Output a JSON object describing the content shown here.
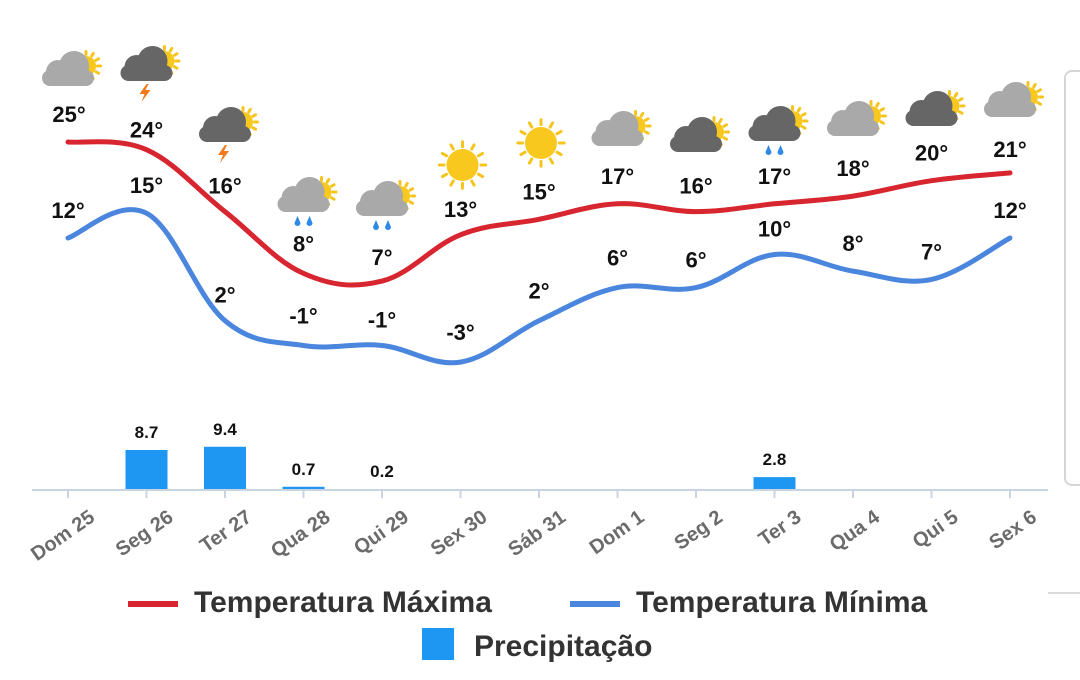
{
  "chart_data": {
    "type": "line",
    "categories": [
      "Dom 25",
      "Seg 26",
      "Ter 27",
      "Qua 28",
      "Qui 29",
      "Sex 30",
      "Sáb 31",
      "Dom 1",
      "Seg 2",
      "Ter 3",
      "Qua 4",
      "Qui 5",
      "Sex 6"
    ],
    "series": [
      {
        "name": "Temperatura Máxima",
        "type": "line",
        "color": "#d7262f",
        "values": [
          25,
          24,
          16,
          8,
          7,
          13,
          15,
          17,
          16,
          17,
          18,
          20,
          21
        ],
        "labels": [
          "25°",
          "24°",
          "16°",
          "8°",
          "7°",
          "13°",
          "15°",
          "17°",
          "16°",
          "17°",
          "18°",
          "20°",
          "21°"
        ]
      },
      {
        "name": "Temperatura Mínima",
        "type": "line",
        "color": "#4a86de",
        "values": [
          12,
          15,
          2,
          -1,
          -1,
          -3,
          2,
          6,
          6,
          10,
          8,
          7,
          12
        ],
        "labels": [
          "12°",
          "15°",
          "2°",
          "-1°",
          "-1°",
          "-3°",
          "2°",
          "6°",
          "6°",
          "10°",
          "8°",
          "7°",
          "12°"
        ]
      },
      {
        "name": "Precipitação",
        "type": "bar",
        "color": "#1e97f3",
        "values": [
          0,
          8.7,
          9.4,
          0.7,
          0.2,
          0,
          0,
          0,
          0,
          2.8,
          0,
          0,
          0
        ],
        "labels": [
          "",
          "8.7",
          "9.4",
          "0.7",
          "0.2",
          "",
          "",
          "",
          "",
          "2.8",
          "",
          "",
          ""
        ]
      }
    ],
    "weather_icons": [
      "partly-cloudy-icon",
      "thunderstorm-icon",
      "thunderstorm-icon",
      "rain-icon",
      "rain-icon",
      "sun-icon",
      "sun-icon",
      "partly-cloudy-icon",
      "partly-cloudy-dark-icon",
      "rain-dark-icon",
      "partly-cloudy-icon",
      "partly-cloudy-dark-icon",
      "partly-cloudy-icon"
    ],
    "legend_position": "bottom",
    "grid": false
  }
}
